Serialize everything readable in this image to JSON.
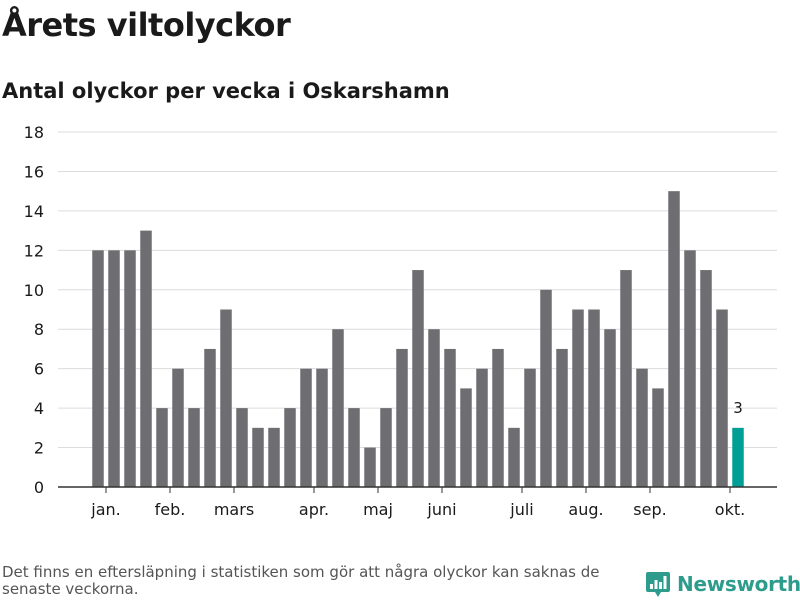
{
  "header": {
    "title": "Årets viltolyckor",
    "subtitle": "Antal olyckor per vecka i Oskarshamn"
  },
  "footer": {
    "note": "Det finns en eftersläpning i statistiken som gör att några olyckor kan saknas de senaste veckorna.",
    "brand": "Newsworthy",
    "brand_icon": "newsworthy-logo-icon",
    "brand_color": "#2d9c8c"
  },
  "chart_data": {
    "type": "bar",
    "title": "Årets viltolyckor",
    "subtitle": "Antal olyckor per vecka i Oskarshamn",
    "xlabel": "",
    "ylabel": "",
    "ylim": [
      0,
      18
    ],
    "yticks": [
      0,
      2,
      4,
      6,
      8,
      10,
      12,
      14,
      16,
      18
    ],
    "grid": true,
    "legend": "none",
    "bar_color": "#6e6d71",
    "highlight_color": "#009f96",
    "highlight_last": true,
    "highlight_label": "3",
    "weeks": [
      1,
      2,
      3,
      4,
      5,
      6,
      7,
      8,
      9,
      10,
      11,
      12,
      13,
      14,
      15,
      16,
      17,
      18,
      19,
      20,
      21,
      22,
      23,
      24,
      25,
      26,
      27,
      28,
      29,
      30,
      31,
      32,
      33,
      34,
      35,
      36,
      37,
      38,
      39,
      40,
      41
    ],
    "values": [
      12,
      12,
      12,
      13,
      4,
      6,
      4,
      7,
      9,
      4,
      3,
      3,
      4,
      6,
      6,
      8,
      4,
      2,
      4,
      7,
      11,
      8,
      7,
      5,
      6,
      7,
      3,
      6,
      10,
      7,
      9,
      9,
      8,
      11,
      6,
      5,
      15,
      12,
      11,
      9,
      3
    ],
    "month_ticks": [
      {
        "label": "jan.",
        "at_week": 1.5
      },
      {
        "label": "feb.",
        "at_week": 5.5
      },
      {
        "label": "mars",
        "at_week": 9.5
      },
      {
        "label": "apr.",
        "at_week": 14.5
      },
      {
        "label": "maj",
        "at_week": 18.5
      },
      {
        "label": "juni",
        "at_week": 22.5
      },
      {
        "label": "juli",
        "at_week": 27.5
      },
      {
        "label": "aug.",
        "at_week": 31.5
      },
      {
        "label": "sep.",
        "at_week": 35.5
      },
      {
        "label": "okt.",
        "at_week": 40.5
      }
    ]
  }
}
